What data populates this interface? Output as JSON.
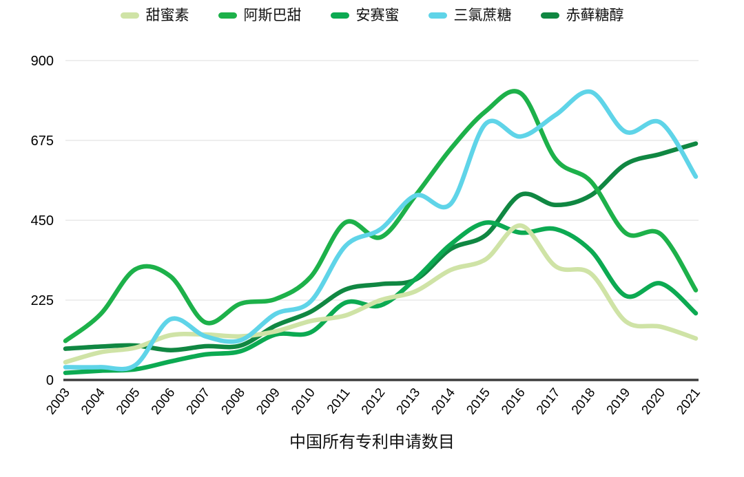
{
  "chart_data": {
    "type": "line",
    "title": "中国所有专利申请数目",
    "x": [
      "2003",
      "2004",
      "2005",
      "2006",
      "2007",
      "2008",
      "2009",
      "2010",
      "2011",
      "2012",
      "2013",
      "2014",
      "2015",
      "2016",
      "2017",
      "2018",
      "2019",
      "2020",
      "2021"
    ],
    "ylim": [
      0,
      900
    ],
    "yticks": [
      0,
      225,
      450,
      675,
      900
    ],
    "grid": true,
    "legend_position": "top",
    "series": [
      {
        "name": "甜蜜素",
        "color": "#cfe3a6",
        "values": [
          50,
          78,
          91,
          126,
          128,
          123,
          137,
          166,
          182,
          225,
          250,
          310,
          340,
          435,
          320,
          300,
          165,
          150,
          117
        ]
      },
      {
        "name": "阿斯巴甜",
        "color": "#1db14a",
        "values": [
          110,
          185,
          312,
          292,
          162,
          215,
          228,
          290,
          444,
          402,
          520,
          651,
          757,
          808,
          622,
          560,
          414,
          411,
          253
        ]
      },
      {
        "name": "安赛蜜",
        "color": "#0caa52",
        "values": [
          20,
          26,
          30,
          52,
          72,
          81,
          128,
          134,
          218,
          210,
          285,
          382,
          443,
          415,
          425,
          365,
          237,
          272,
          188
        ]
      },
      {
        "name": "三氯蔗糖",
        "color": "#5fd4e8",
        "values": [
          36,
          36,
          42,
          171,
          123,
          112,
          186,
          221,
          378,
          425,
          520,
          496,
          722,
          686,
          747,
          812,
          699,
          725,
          573
        ]
      },
      {
        "name": "赤藓糖醇",
        "color": "#108742",
        "values": [
          88,
          94,
          97,
          84,
          95,
          97,
          153,
          192,
          255,
          270,
          283,
          369,
          408,
          522,
          493,
          520,
          608,
          637,
          666
        ]
      }
    ],
    "draw_order": [
      4,
      1,
      2,
      0,
      3
    ],
    "axis_color": "#3d3d3d",
    "gridline_color": "#e3e3e3",
    "tick_label_color": "#000000"
  }
}
